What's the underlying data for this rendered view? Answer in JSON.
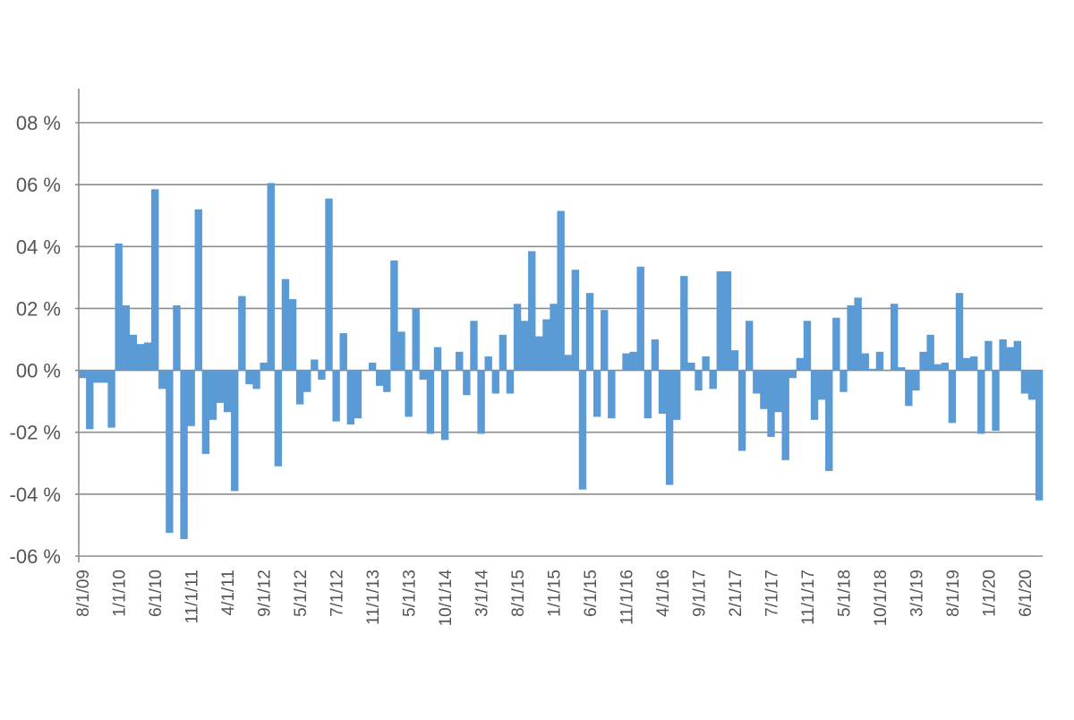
{
  "chart_data": {
    "type": "bar",
    "title": "",
    "xlabel": "",
    "ylabel": "",
    "ylim": [
      -0.06,
      0.08
    ],
    "grid": true,
    "legend": "none",
    "colors": {
      "bar": "#5b9bd5",
      "grid": "#8c8c8c",
      "text": "#555555"
    },
    "y_ticks": [
      {
        "value": 0.08,
        "label": "08 %"
      },
      {
        "value": 0.06,
        "label": "06 %"
      },
      {
        "value": 0.04,
        "label": "04 %"
      },
      {
        "value": 0.02,
        "label": "02 %"
      },
      {
        "value": 0.0,
        "label": "00 %"
      },
      {
        "value": -0.02,
        "label": "-02 %"
      },
      {
        "value": -0.04,
        "label": "-04 %"
      },
      {
        "value": -0.06,
        "label": "-06 %"
      }
    ],
    "x_tick_labels": [
      {
        "index": 0,
        "label": "8/1/09"
      },
      {
        "index": 5,
        "label": "1/1/10"
      },
      {
        "index": 10,
        "label": "6/1/10"
      },
      {
        "index": 15,
        "label": "11/1/11"
      },
      {
        "index": 20,
        "label": "4/1/11"
      },
      {
        "index": 25,
        "label": "9/1/12"
      },
      {
        "index": 30,
        "label": "5/1/12"
      },
      {
        "index": 35,
        "label": "7/1/12"
      },
      {
        "index": 40,
        "label": "11/1/13"
      },
      {
        "index": 45,
        "label": "5/1/13"
      },
      {
        "index": 50,
        "label": "10/1/14"
      },
      {
        "index": 55,
        "label": "3/1/14"
      },
      {
        "index": 60,
        "label": "8/1/15"
      },
      {
        "index": 65,
        "label": "1/1/15"
      },
      {
        "index": 70,
        "label": "6/1/15"
      },
      {
        "index": 75,
        "label": "11/1/16"
      },
      {
        "index": 80,
        "label": "4/1/16"
      },
      {
        "index": 85,
        "label": "9/1/17"
      },
      {
        "index": 90,
        "label": "2/1/17"
      },
      {
        "index": 95,
        "label": "7/1/17"
      },
      {
        "index": 100,
        "label": "11/1/17"
      },
      {
        "index": 105,
        "label": "5/1/18"
      },
      {
        "index": 110,
        "label": "10/1/18"
      },
      {
        "index": 115,
        "label": "3/1/19"
      },
      {
        "index": 120,
        "label": "8/1/19"
      },
      {
        "index": 125,
        "label": "1/1/20"
      },
      {
        "index": 130,
        "label": "6/1/20"
      }
    ],
    "values": [
      -0.0025,
      -0.019,
      -0.004,
      -0.004,
      -0.0185,
      0.041,
      0.021,
      0.0115,
      0.0085,
      0.009,
      0.0585,
      -0.006,
      -0.0525,
      0.021,
      -0.0545,
      -0.018,
      0.052,
      -0.027,
      -0.016,
      -0.0105,
      -0.0135,
      -0.039,
      0.024,
      -0.0045,
      -0.006,
      0.0025,
      0.0605,
      -0.031,
      0.0295,
      0.023,
      -0.011,
      -0.007,
      0.0035,
      -0.003,
      0.0555,
      -0.0165,
      0.012,
      -0.0175,
      -0.0155,
      0.0,
      0.0025,
      -0.005,
      -0.007,
      0.0355,
      0.0125,
      -0.015,
      0.02,
      -0.003,
      -0.0205,
      0.0075,
      -0.0225,
      0.0,
      0.006,
      -0.008,
      0.016,
      -0.0205,
      0.0045,
      -0.0075,
      0.0115,
      -0.0075,
      0.0215,
      0.016,
      0.0385,
      0.011,
      0.0165,
      0.0215,
      0.0515,
      0.005,
      0.0325,
      -0.0385,
      0.025,
      -0.015,
      0.0195,
      -0.0155,
      0.0,
      0.0055,
      0.006,
      0.0335,
      -0.0155,
      0.01,
      -0.014,
      -0.037,
      -0.016,
      0.0305,
      0.0025,
      -0.0065,
      0.0045,
      -0.006,
      0.032,
      0.032,
      0.0065,
      -0.026,
      0.016,
      -0.0075,
      -0.0125,
      -0.0215,
      -0.0135,
      -0.029,
      -0.0025,
      0.004,
      0.016,
      -0.016,
      -0.0095,
      -0.0325,
      0.017,
      -0.007,
      0.021,
      0.0235,
      0.0055,
      0.0005,
      0.006,
      0.0,
      0.0215,
      0.001,
      -0.0115,
      -0.0065,
      0.006,
      0.0115,
      0.002,
      0.0025,
      -0.017,
      0.025,
      0.004,
      0.0045,
      -0.0205,
      0.0095,
      -0.0195,
      0.01,
      0.0075,
      0.0095,
      -0.0075,
      -0.0095,
      -0.042
    ]
  }
}
